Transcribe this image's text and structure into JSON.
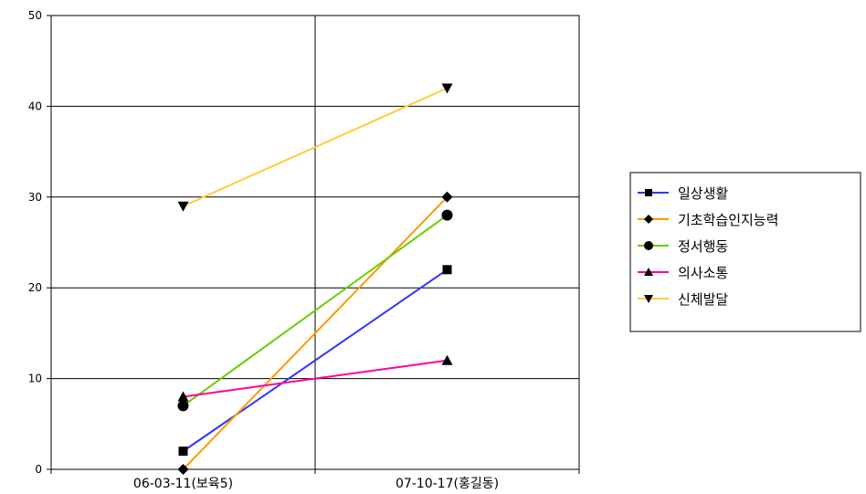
{
  "chart_data": {
    "type": "line",
    "categories": [
      "06-03-11(보육5)",
      "07-10-17(홍길동)"
    ],
    "ylim": [
      0,
      50
    ],
    "yticks": [
      0,
      10,
      20,
      30,
      40,
      50
    ],
    "grid": true,
    "legend_position": "right",
    "series": [
      {
        "name": "일상생활",
        "values": [
          2,
          22
        ],
        "color": "#3333ff",
        "marker": "square"
      },
      {
        "name": "기초학습인지능력",
        "values": [
          0,
          30
        ],
        "color": "#ff9900",
        "marker": "diamond"
      },
      {
        "name": "정서행동",
        "values": [
          7,
          28
        ],
        "color": "#66cc00",
        "marker": "circle"
      },
      {
        "name": "의사소통",
        "values": [
          8,
          12
        ],
        "color": "#ff0099",
        "marker": "triangle-up"
      },
      {
        "name": "신체발달",
        "values": [
          29,
          42
        ],
        "color": "#ffcc33",
        "marker": "triangle-down"
      }
    ]
  }
}
